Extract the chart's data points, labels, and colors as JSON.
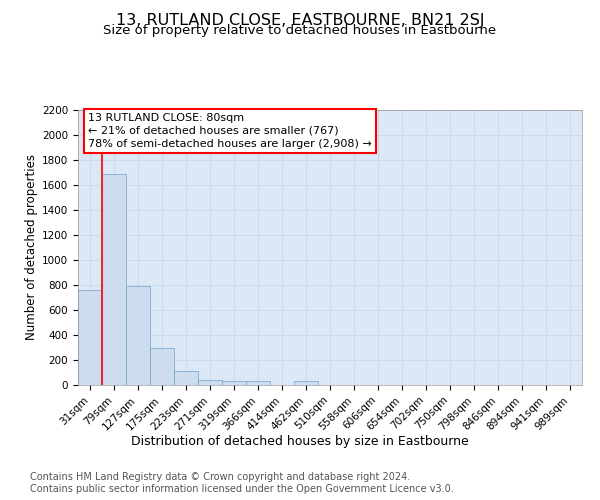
{
  "title": "13, RUTLAND CLOSE, EASTBOURNE, BN21 2SJ",
  "subtitle": "Size of property relative to detached houses in Eastbourne",
  "xlabel": "Distribution of detached houses by size in Eastbourne",
  "ylabel": "Number of detached properties",
  "footnote1": "Contains HM Land Registry data © Crown copyright and database right 2024.",
  "footnote2": "Contains public sector information licensed under the Open Government Licence v3.0.",
  "categories": [
    "31sqm",
    "79sqm",
    "127sqm",
    "175sqm",
    "223sqm",
    "271sqm",
    "319sqm",
    "366sqm",
    "414sqm",
    "462sqm",
    "510sqm",
    "558sqm",
    "606sqm",
    "654sqm",
    "702sqm",
    "750sqm",
    "798sqm",
    "846sqm",
    "894sqm",
    "941sqm",
    "989sqm"
  ],
  "values": [
    760,
    1690,
    790,
    295,
    115,
    40,
    30,
    30,
    0,
    30,
    0,
    0,
    0,
    0,
    0,
    0,
    0,
    0,
    0,
    0,
    0
  ],
  "bar_color": "#cddcee",
  "bar_edge_color": "#7aaed4",
  "red_line_x": 1,
  "annotation_text": "13 RUTLAND CLOSE: 80sqm\n← 21% of detached houses are smaller (767)\n78% of semi-detached houses are larger (2,908) →",
  "ylim": [
    0,
    2200
  ],
  "yticks": [
    0,
    200,
    400,
    600,
    800,
    1000,
    1200,
    1400,
    1600,
    1800,
    2000,
    2200
  ],
  "grid_color": "#c8d8e8",
  "background_color": "#dce8f5",
  "fig_background": "#ffffff",
  "title_fontsize": 11.5,
  "subtitle_fontsize": 9.5,
  "ylabel_fontsize": 8.5,
  "xlabel_fontsize": 9,
  "tick_fontsize": 7.5,
  "annotation_fontsize": 8,
  "footnote_fontsize": 7
}
